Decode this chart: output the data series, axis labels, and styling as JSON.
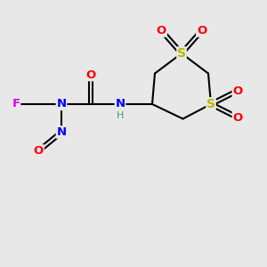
{
  "bg_color": "#e8e8e8",
  "bond_color": "#000000",
  "bond_width": 1.5,
  "atom_colors": {
    "F": "#e000e0",
    "N": "#0000ff",
    "O": "#ff0000",
    "S": "#b8b800",
    "C": "#000000",
    "H": "#4a9090"
  },
  "font_size": 9.5,
  "figsize": [
    3.0,
    3.0
  ],
  "dpi": 100,
  "xlim": [
    0,
    10
  ],
  "ylim": [
    0,
    10
  ]
}
